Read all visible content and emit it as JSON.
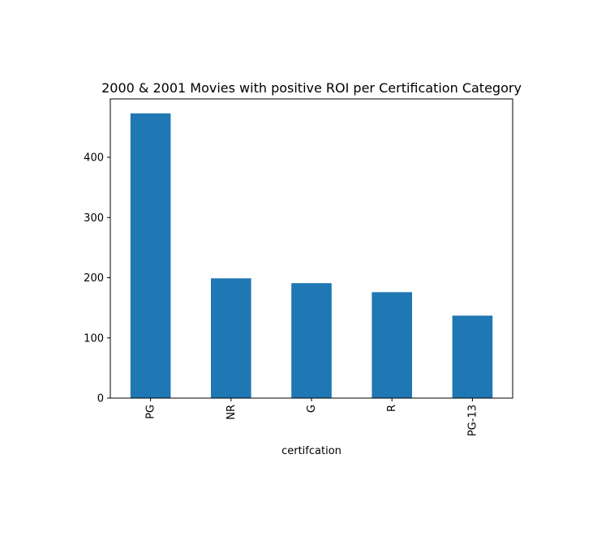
{
  "chart_data": {
    "type": "bar",
    "title": "2000 & 2001 Movies with positive ROI per Certification Category",
    "xlabel": "certifcation",
    "ylabel": "",
    "categories": [
      "PG",
      "NR",
      "G",
      "R",
      "PG-13"
    ],
    "values": [
      473,
      199,
      191,
      176,
      137
    ],
    "ylim": [
      0,
      497
    ],
    "yticks": [
      0,
      100,
      200,
      300,
      400
    ],
    "ytick_labels": [
      "0",
      "100",
      "200",
      "300",
      "400"
    ],
    "grid": false,
    "legend": "none",
    "bar_color": "#1f77b4",
    "xtick_rotation": 90
  }
}
